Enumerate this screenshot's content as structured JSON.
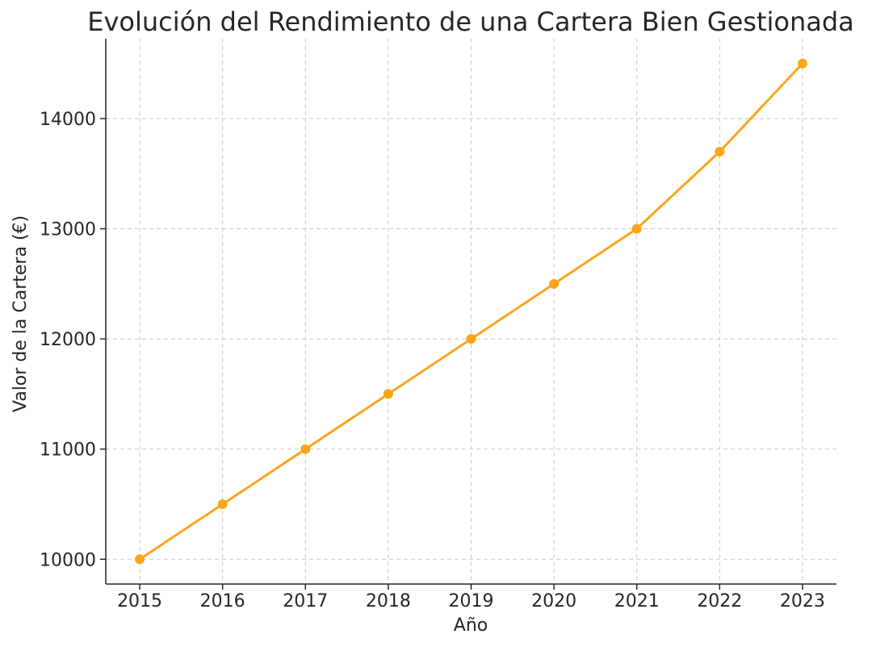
{
  "chart_data": {
    "type": "line",
    "title": "Evolución del Rendimiento de una Cartera Bien Gestionada",
    "xlabel": "Año",
    "ylabel": "Valor de la Cartera (€)",
    "x": [
      2015,
      2016,
      2017,
      2018,
      2019,
      2020,
      2021,
      2022,
      2023
    ],
    "series": [
      {
        "values": [
          10000,
          10500,
          11000,
          11500,
          12000,
          12500,
          13000,
          13700,
          14500
        ],
        "color": "#FAA61A",
        "marker": "circle"
      }
    ],
    "xticks": [
      "2015",
      "2016",
      "2017",
      "2018",
      "2019",
      "2020",
      "2021",
      "2022",
      "2023"
    ],
    "yticks": [
      "10000",
      "11000",
      "12000",
      "13000",
      "14000"
    ],
    "xlim": [
      2014.59,
      2023.41
    ],
    "ylim": [
      9775,
      14725
    ],
    "grid": true,
    "legend": "none"
  }
}
